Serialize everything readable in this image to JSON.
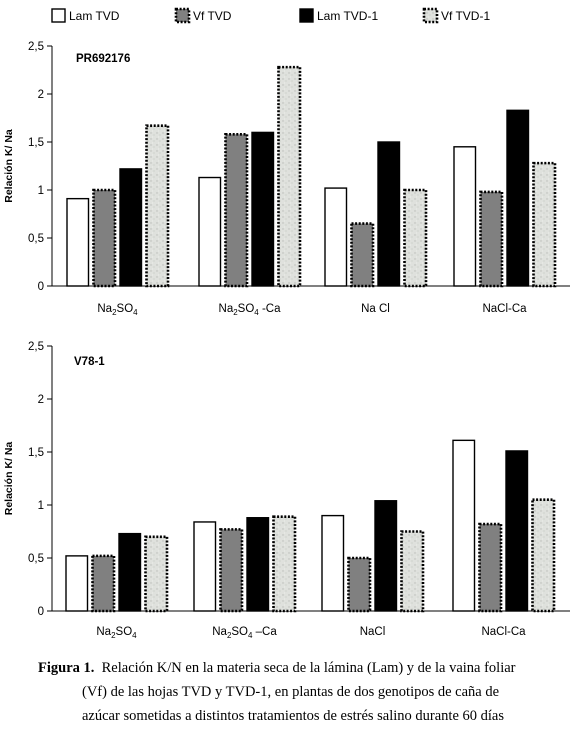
{
  "legend": [
    {
      "label": "Lam TVD",
      "fill": "#ffffff",
      "dotted": false
    },
    {
      "label": "Vf  TVD",
      "fill": "#808080",
      "dotted": true
    },
    {
      "label": "Lam TVD-1",
      "fill": "#000000",
      "dotted": false
    },
    {
      "label": "Vf  TVD-1",
      "fill": "#d9dcd8",
      "dotted": true
    }
  ],
  "chart_data": [
    {
      "type": "bar",
      "panel_label": "PR692176",
      "ylabel": "Relación K/ Na",
      "ylim": [
        0,
        2.5
      ],
      "yticks": [
        "0",
        "0,5",
        "1",
        "1,5",
        "2",
        "2,5"
      ],
      "categories": [
        "Na2SO4",
        "Na2SO4 -Ca",
        "Na Cl",
        "NaCl-Ca"
      ],
      "series": [
        {
          "name": "Lam TVD",
          "values": [
            0.91,
            1.13,
            1.02,
            1.45
          ]
        },
        {
          "name": "Vf  TVD",
          "values": [
            1.0,
            1.58,
            0.65,
            0.98
          ]
        },
        {
          "name": "Lam TVD-1",
          "values": [
            1.22,
            1.6,
            1.5,
            1.83
          ]
        },
        {
          "name": "Vf  TVD-1",
          "values": [
            1.67,
            2.28,
            1.0,
            1.28
          ]
        }
      ]
    },
    {
      "type": "bar",
      "panel_label": "V78-1",
      "ylabel": "Relación K/ Na",
      "ylim": [
        0,
        2.5
      ],
      "yticks": [
        "0",
        "0,5",
        "1",
        "1,5",
        "2",
        "2,5"
      ],
      "categories": [
        "Na2SO4",
        "Na2SO4 –Ca",
        "NaCl",
        "NaCl-Ca"
      ],
      "series": [
        {
          "name": "Lam TVD",
          "values": [
            0.52,
            0.84,
            0.9,
            1.61
          ]
        },
        {
          "name": "Vf  TVD",
          "values": [
            0.52,
            0.77,
            0.5,
            0.82
          ]
        },
        {
          "name": "Lam TVD-1",
          "values": [
            0.73,
            0.88,
            1.04,
            1.51
          ]
        },
        {
          "name": "Vf  TVD-1",
          "values": [
            0.7,
            0.89,
            0.75,
            1.05
          ]
        }
      ]
    }
  ],
  "caption": {
    "label": "Figura 1.",
    "line1": "Relación K/N en la materia seca de la lámina (Lam) y de la vaina foliar",
    "line2": "(Vf) de las hojas TVD y TVD-1, en plantas de dos genotipos de caña de",
    "line3": "azúcar sometidas a distintos tratamientos de estrés salino durante 60 días"
  }
}
